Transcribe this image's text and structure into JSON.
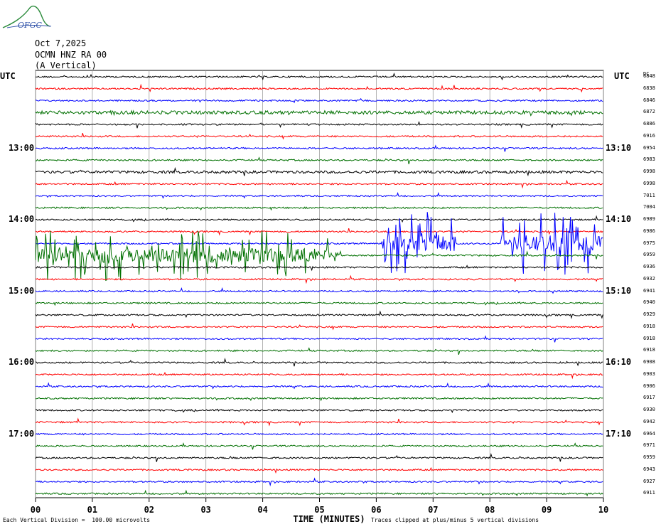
{
  "logo": {
    "text": "OFGC"
  },
  "header": {
    "date": "Oct 7,2025",
    "station": "OCMN HNZ RA 00",
    "component": "(A Vertical)"
  },
  "utc_left": "UTC",
  "utc_right": "UTC",
  "dc_label": "DC",
  "colors": {
    "trace_cycle": [
      "#000000",
      "#ff0000",
      "#0000ff",
      "#007000"
    ],
    "grid": "#a0a0a0"
  },
  "chart_data": {
    "type": "line",
    "title": "",
    "xlabel": "TIME (MINUTES)",
    "xlim": [
      0,
      10
    ],
    "x_ticks": [
      "00",
      "01",
      "02",
      "03",
      "04",
      "05",
      "06",
      "07",
      "08",
      "09",
      "10"
    ],
    "rows": 36,
    "left_time_labels": [
      {
        "row": 6,
        "label": "13:00"
      },
      {
        "row": 12,
        "label": "14:00"
      },
      {
        "row": 18,
        "label": "15:00"
      },
      {
        "row": 24,
        "label": "16:00"
      },
      {
        "row": 30,
        "label": "17:00"
      }
    ],
    "right_time_labels": [
      {
        "row": 6,
        "label": "13:10"
      },
      {
        "row": 12,
        "label": "14:10"
      },
      {
        "row": 18,
        "label": "15:10"
      },
      {
        "row": 24,
        "label": "16:10"
      },
      {
        "row": 30,
        "label": "17:10"
      }
    ],
    "dc_offsets": [
      6848,
      6838,
      6846,
      6872,
      6886,
      6916,
      6954,
      6983,
      6998,
      6998,
      7011,
      7004,
      6989,
      6986,
      6975,
      6959,
      6936,
      6932,
      6941,
      6940,
      6929,
      6918,
      6918,
      6918,
      6908,
      6903,
      6906,
      6917,
      6930,
      6942,
      6964,
      6971,
      6959,
      6943,
      6927,
      6911
    ],
    "scale_note": "Each Vertical Division =  100.00 microvolts",
    "clip_note": "Traces clipped at plus/minus 5 vertical divisions"
  }
}
